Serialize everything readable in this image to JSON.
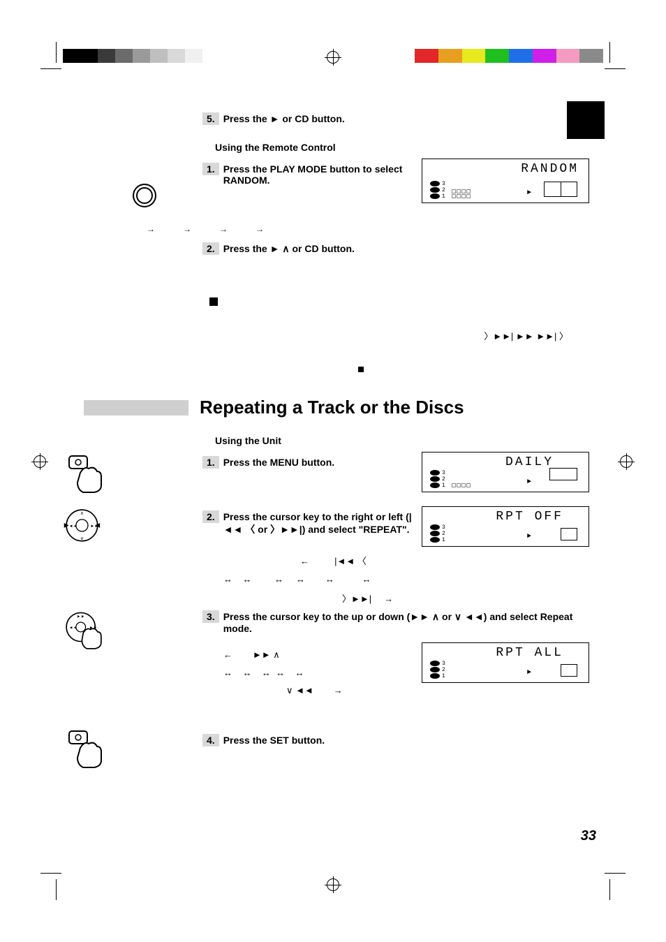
{
  "colorbar_left": [
    "#000000",
    "#000000",
    "#3a3a3a",
    "#6b6b6b",
    "#9a9a9a",
    "#bfbfbf",
    "#d9d9d9",
    "#f0f0f0"
  ],
  "colorbar_right": [
    "#e12727",
    "#e89f1f",
    "#e8e81f",
    "#1fbf1f",
    "#1f6fe8",
    "#cf1fe8",
    "#f59ac0",
    "#8a8a8a"
  ],
  "section1": {
    "step5": {
      "num": "5.",
      "text": "Press the ► or CD button."
    },
    "remote_heading": "Using the Remote Control",
    "step1": {
      "num": "1.",
      "text": "Press the PLAY MODE button to select RANDOM."
    },
    "lcd1": {
      "title": "RANDOM"
    },
    "step2": {
      "num": "2.",
      "text": "Press the ► ∧ or CD button."
    },
    "nav_syms": "〉►►|          ►► ►►| 〉"
  },
  "main_heading": "Repeating a Track or the Discs",
  "section2": {
    "unit_heading": "Using the Unit",
    "step1": {
      "num": "1.",
      "text": "Press the MENU button."
    },
    "lcd_daily": {
      "title": "DAILY"
    },
    "step2": {
      "num": "2.",
      "text": "Press the cursor key to the right or left (|◄◄ 〈 or 〉►►|) and select \"REPEAT\"."
    },
    "lcd_rptoff": {
      "title": "RPT OFF"
    },
    "nav_row1": "←          |◄◄ 〈",
    "nav_row2": "↔    ↔         ↔     ↔        ↔           ↔",
    "nav_row3": "〉►►|     →",
    "step3": {
      "num": "3.",
      "text": "Press the cursor key to the up or down (►► ∧ or ∨ ◄◄) and select Repeat mode."
    },
    "lcd_rptall": {
      "title": "RPT ALL"
    },
    "mode_row1": "←        ►► ∧",
    "mode_row2": "↔    ↔    ↔  ↔    ↔",
    "mode_row3": "∨ ◄◄        →",
    "step4": {
      "num": "4.",
      "text": "Press the SET button."
    }
  },
  "page_number": "33"
}
